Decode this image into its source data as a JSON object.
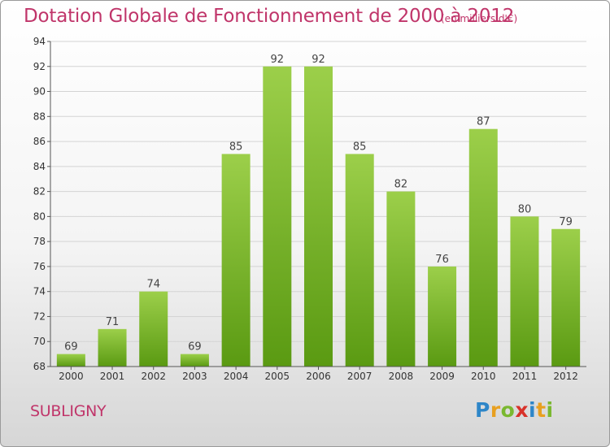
{
  "title": "Dotation Globale de Fonctionnement de 2000 à 2012",
  "subtitle": "(en milliers d'€)",
  "commune": "SUBLIGNY",
  "logo": {
    "letters": [
      {
        "ch": "P",
        "color": "#2e86c8"
      },
      {
        "ch": "r",
        "color": "#e8a020"
      },
      {
        "ch": "o",
        "color": "#7ab830"
      },
      {
        "ch": "x",
        "color": "#d8322a"
      },
      {
        "ch": "i",
        "color": "#2e86c8"
      },
      {
        "ch": "t",
        "color": "#e8a020"
      },
      {
        "ch": "i",
        "color": "#7ab830"
      }
    ]
  },
  "colors": {
    "bar_top": "#9ccf4a",
    "bar_bottom": "#5a9a12",
    "title": "#c0356a"
  },
  "chart_data": {
    "type": "bar",
    "categories": [
      "2000",
      "2001",
      "2002",
      "2003",
      "2004",
      "2005",
      "2006",
      "2007",
      "2008",
      "2009",
      "2010",
      "2011",
      "2012"
    ],
    "values": [
      69,
      71,
      74,
      69,
      85,
      92,
      92,
      85,
      82,
      76,
      87,
      80,
      79
    ],
    "ylim": [
      68,
      94
    ],
    "yticks": [
      68,
      70,
      72,
      74,
      76,
      78,
      80,
      82,
      84,
      86,
      88,
      90,
      92,
      94
    ],
    "grid": true
  }
}
